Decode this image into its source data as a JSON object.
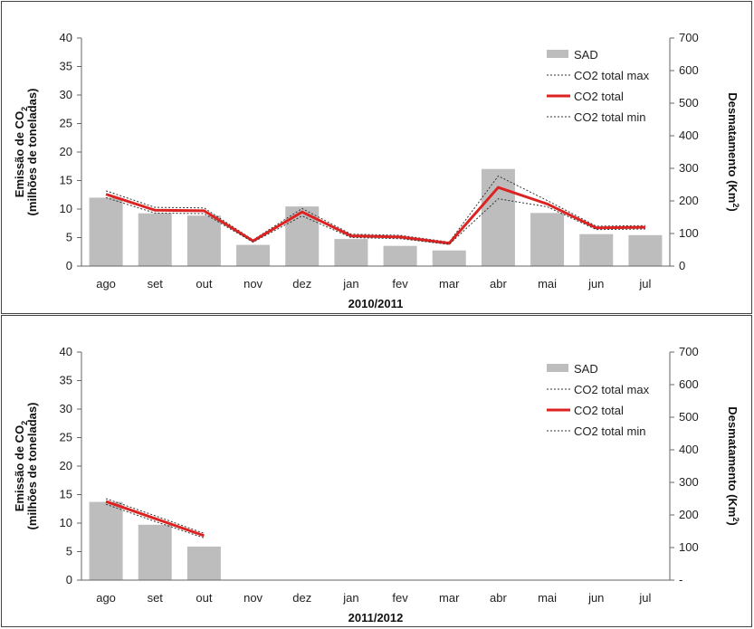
{
  "chart_data": [
    {
      "type": "bar",
      "period_label": "2010/2011",
      "categories": [
        "ago",
        "set",
        "out",
        "nov",
        "dez",
        "jan",
        "fev",
        "mar",
        "abr",
        "mai",
        "jun",
        "jul"
      ],
      "ylabel_left_line1": "Emissão de CO",
      "ylabel_left_sub": "2",
      "ylabel_left_line2": "(milhões de toneladas)",
      "ylabel_right": "Desmatamento (Km",
      "ylabel_right_sup": "2",
      "ylabel_right_close": ")",
      "ylim_left": [
        0,
        40
      ],
      "ylim_right": [
        0,
        700
      ],
      "left_ticks": [
        "0",
        "5",
        "10",
        "15",
        "20",
        "25",
        "30",
        "35",
        "40"
      ],
      "right_ticks": [
        "0",
        "100",
        "200",
        "300",
        "400",
        "500",
        "600",
        "700"
      ],
      "legend": [
        "SAD",
        "CO2 total max",
        "CO2 total",
        "CO2 total min"
      ],
      "series": [
        {
          "name": "SAD",
          "axis": "right",
          "color": "#bdbdbd",
          "values": [
            210,
            162,
            155,
            65,
            183,
            83,
            62,
            48,
            298,
            163,
            98,
            95
          ]
        },
        {
          "name": "CO2 total max",
          "axis": "left",
          "color": "#333333",
          "values": [
            13.2,
            10.3,
            10.2,
            4.6,
            10.1,
            5.6,
            5.4,
            4.2,
            15.8,
            11.5,
            7.0,
            7.1
          ]
        },
        {
          "name": "CO2 total",
          "axis": "left",
          "color": "#dd2222",
          "values": [
            12.6,
            9.8,
            9.7,
            4.4,
            9.5,
            5.3,
            5.1,
            4.0,
            13.8,
            10.9,
            6.7,
            6.8
          ]
        },
        {
          "name": "CO2 total min",
          "axis": "left",
          "color": "#333333",
          "values": [
            12.0,
            9.3,
            9.2,
            4.2,
            8.8,
            5.0,
            4.8,
            3.8,
            11.8,
            10.4,
            6.4,
            6.5
          ]
        }
      ]
    },
    {
      "type": "bar",
      "period_label": "2011/2012",
      "categories": [
        "ago",
        "set",
        "out",
        "nov",
        "dez",
        "jan",
        "fev",
        "mar",
        "abr",
        "mai",
        "jun",
        "jul"
      ],
      "ylabel_left_line1": "Emissão de CO",
      "ylabel_left_sub": "2",
      "ylabel_left_line2": "(milhões de toneladas)",
      "ylabel_right": "Desmatamento (Km",
      "ylabel_right_sup": "2",
      "ylabel_right_close": ")",
      "ylim_left": [
        0,
        40
      ],
      "ylim_right": [
        0,
        700
      ],
      "left_ticks": [
        "0",
        "5",
        "10",
        "15",
        "20",
        "25",
        "30",
        "35",
        "40"
      ],
      "right_ticks": [
        "-",
        "100",
        "200",
        "300",
        "400",
        "500",
        "600",
        "700"
      ],
      "legend": [
        "SAD",
        "CO2 total max",
        "CO2 total",
        "CO2 total min"
      ],
      "series": [
        {
          "name": "SAD",
          "axis": "right",
          "color": "#bdbdbd",
          "values": [
            240,
            170,
            103,
            null,
            null,
            null,
            null,
            null,
            null,
            null,
            null,
            null
          ]
        },
        {
          "name": "CO2 total max",
          "axis": "left",
          "color": "#333333",
          "values": [
            14.3,
            11.3,
            8.2,
            null,
            null,
            null,
            null,
            null,
            null,
            null,
            null,
            null
          ]
        },
        {
          "name": "CO2 total",
          "axis": "left",
          "color": "#dd2222",
          "values": [
            13.8,
            10.8,
            7.8,
            null,
            null,
            null,
            null,
            null,
            null,
            null,
            null,
            null
          ]
        },
        {
          "name": "CO2 total min",
          "axis": "left",
          "color": "#333333",
          "values": [
            13.3,
            10.3,
            7.4,
            null,
            null,
            null,
            null,
            null,
            null,
            null,
            null,
            null
          ]
        }
      ]
    }
  ]
}
